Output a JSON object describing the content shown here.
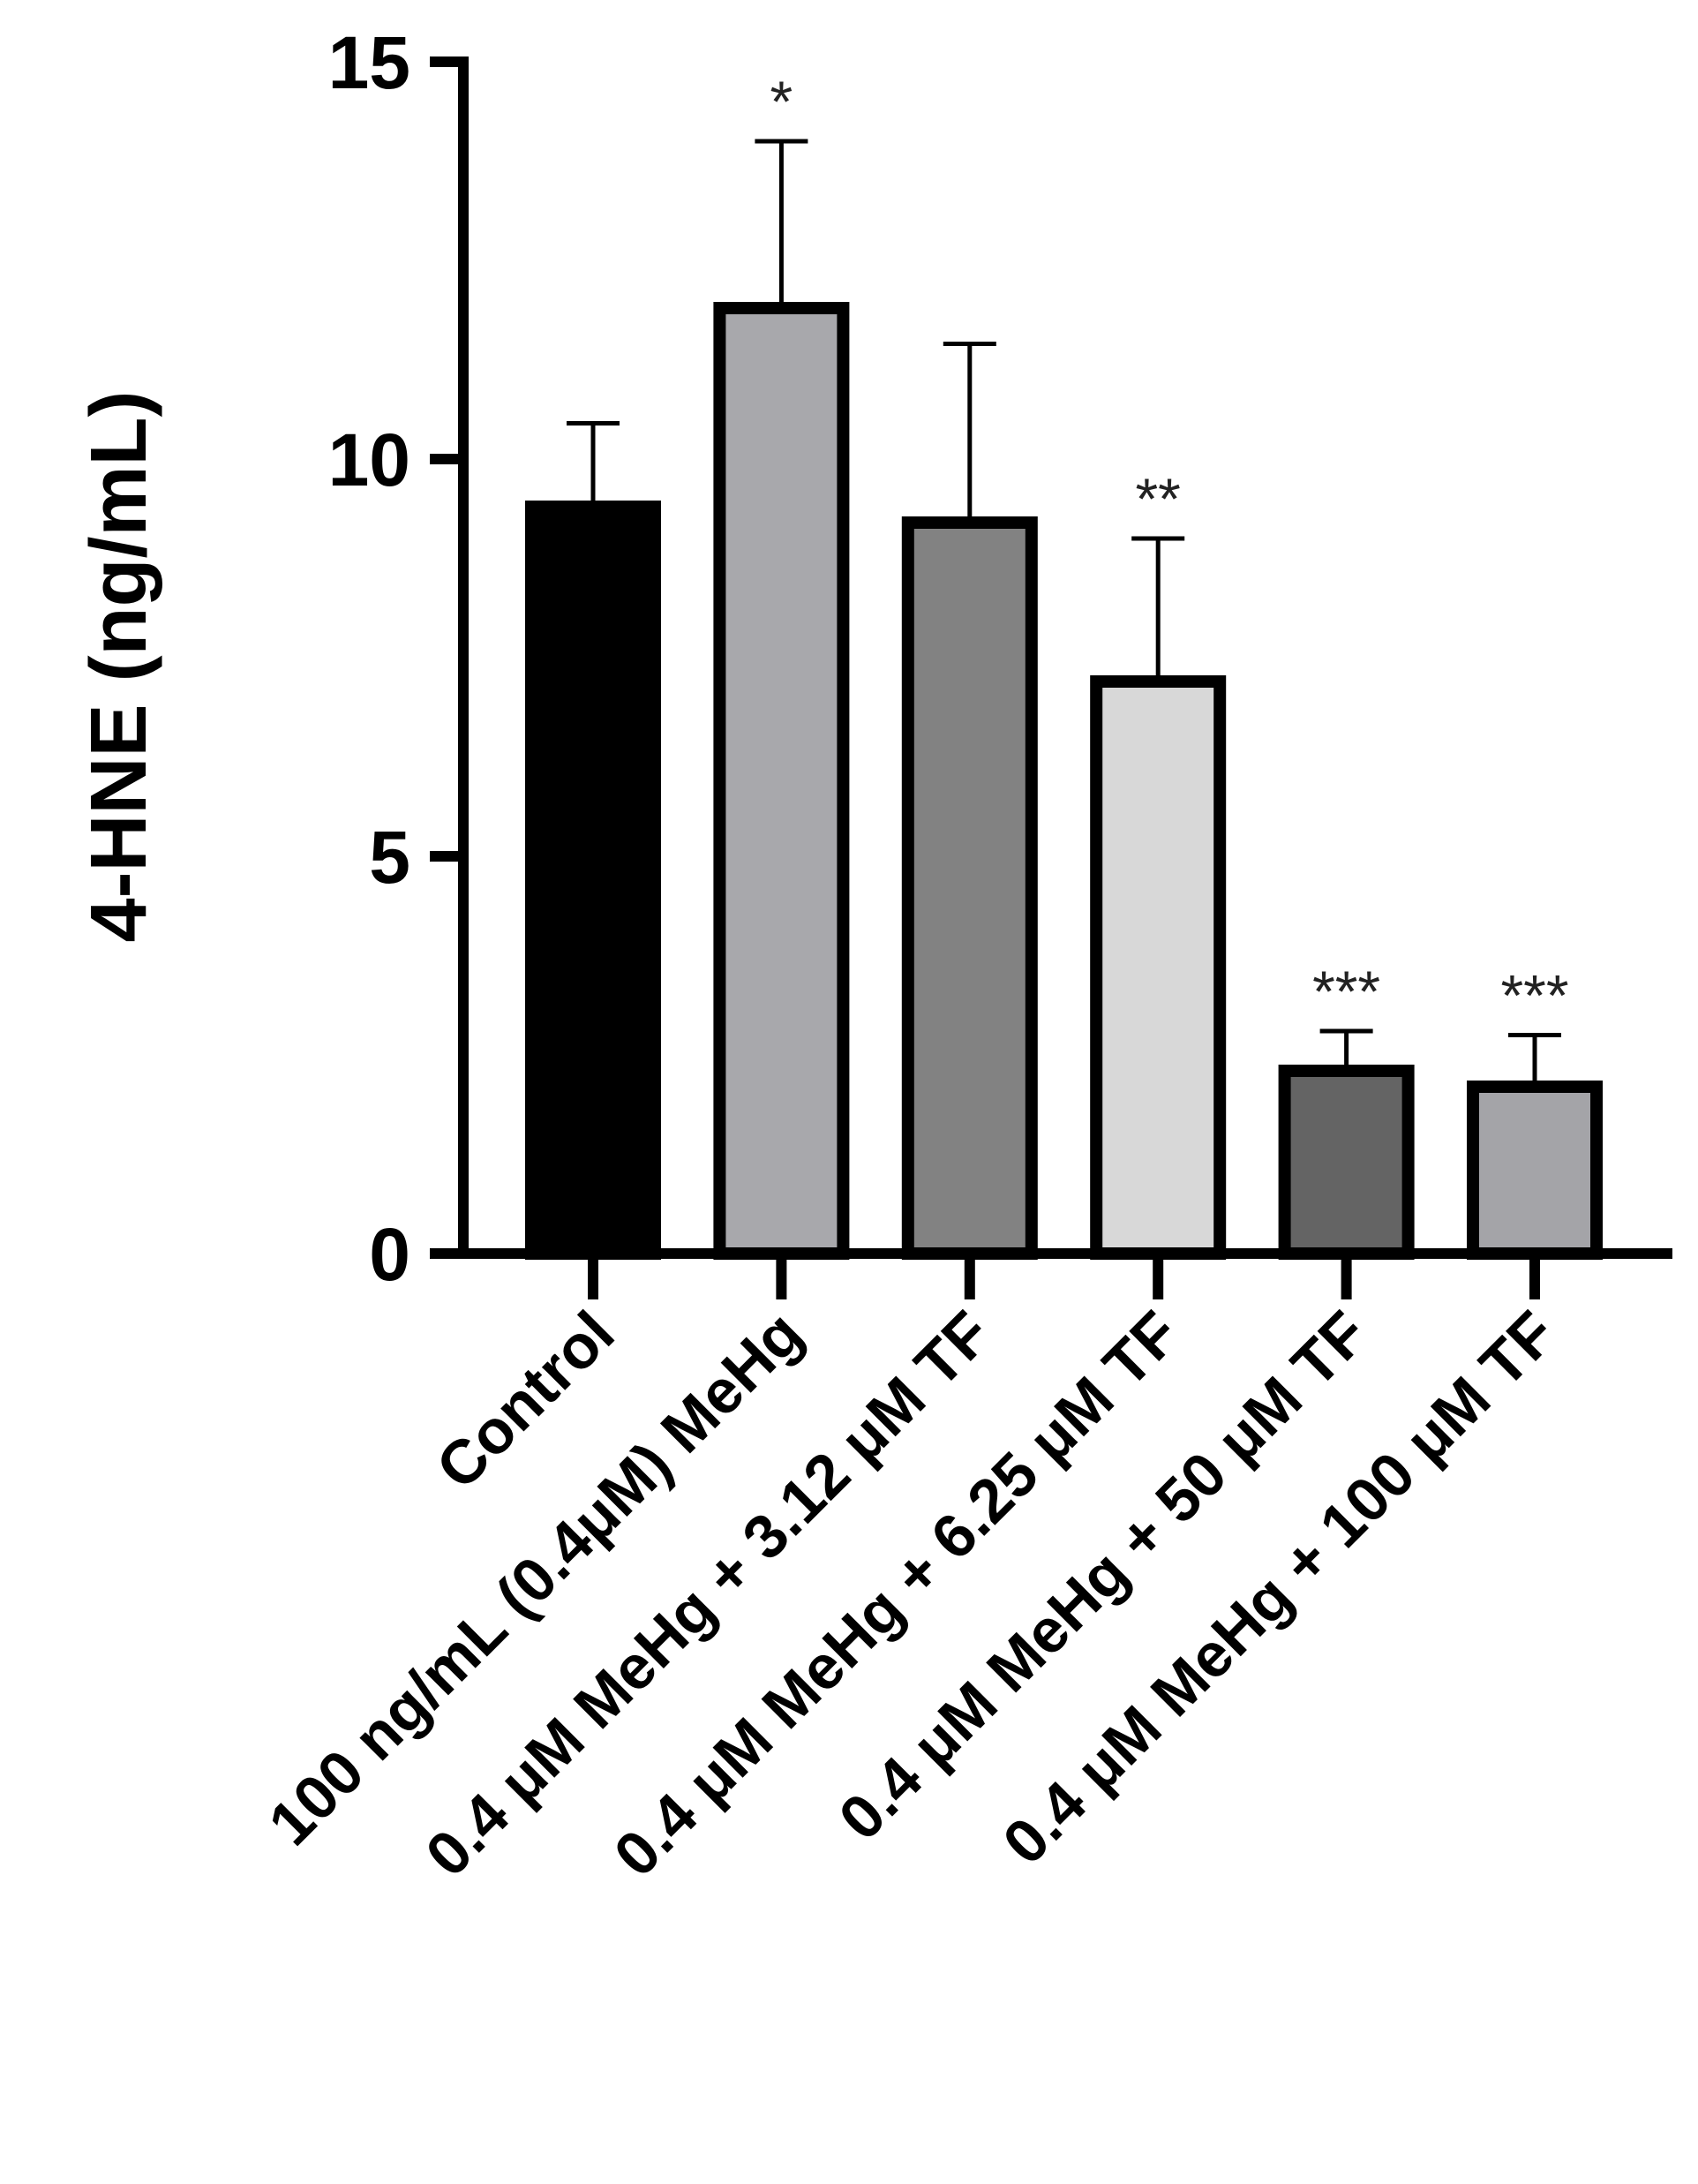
{
  "chart_data": {
    "type": "bar",
    "ylabel": "4-HNE (ng/mL)",
    "xlabel": "",
    "ylim": [
      0,
      15
    ],
    "yticks": [
      0,
      5,
      10,
      15
    ],
    "grid": false,
    "legend": "none",
    "categories": [
      "Control",
      "100 ng/mL (0.4μM) MeHg",
      "0.4 μM MeHg + 3.12 μM TF",
      "0.4 μM MeHg + 6.25 μM TF",
      "0.4 μM MeHg + 50 μM TF",
      "0.4 μM MeHg + 100 μM TF"
    ],
    "values": [
      9.4,
      11.9,
      9.2,
      7.2,
      2.3,
      2.1
    ],
    "error_upper": [
      10.45,
      14.0,
      11.45,
      9.0,
      2.8,
      2.75
    ],
    "significance": [
      "",
      "*",
      "",
      "**",
      "***",
      "***"
    ],
    "bar_colors": [
      "#000000",
      "#a8a8ac",
      "#828282",
      "#d8d8d8",
      "#646464",
      "#a4a4a8"
    ]
  }
}
